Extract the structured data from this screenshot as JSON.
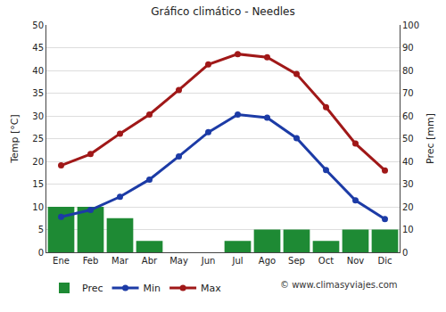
{
  "chart_data": {
    "type": "bar",
    "title": "Gráfico climático - Needles",
    "y_label": "Temp [°C]",
    "y2_label": "Prec [mm]",
    "annotation": "© www.climasyviajes.com",
    "categories": [
      "Ene",
      "Feb",
      "Mar",
      "Abr",
      "May",
      "Jun",
      "Jul",
      "Ago",
      "Sep",
      "Oct",
      "Nov",
      "Dic"
    ],
    "series": [
      {
        "name": "Prec",
        "type": "bar",
        "axis": "y2",
        "color": "#1e8a34",
        "values": [
          20,
          20,
          15,
          5,
          0,
          0,
          5,
          10,
          10,
          5,
          10,
          10
        ]
      },
      {
        "name": "Min",
        "type": "line",
        "marker": "circle",
        "color": "#1c3ba6",
        "values": [
          7.8,
          9.3,
          12.2,
          16,
          21.1,
          26.4,
          30.3,
          29.6,
          25.1,
          18.1,
          11.4,
          7.3
        ]
      },
      {
        "name": "Max",
        "type": "line",
        "marker": "circle",
        "color": "#a01818",
        "values": [
          19.1,
          21.6,
          26.1,
          30.3,
          35.7,
          41.3,
          43.6,
          42.9,
          39.2,
          31.9,
          23.9,
          18.0
        ]
      }
    ],
    "ylim": [
      0,
      50
    ],
    "yticks": [
      0,
      5,
      10,
      15,
      20,
      25,
      30,
      35,
      40,
      45,
      50
    ],
    "y2lim": [
      0,
      100
    ],
    "y2ticks": [
      0,
      10,
      20,
      30,
      40,
      50,
      60,
      70,
      80,
      90,
      100
    ],
    "grid": true,
    "legend": "bottom"
  }
}
